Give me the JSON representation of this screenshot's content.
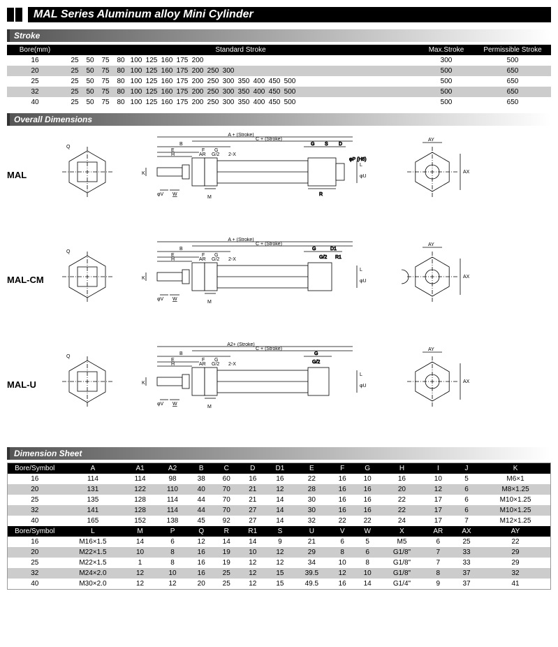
{
  "title": "MAL Series Aluminum alloy Mini Cylinder",
  "sections": {
    "stroke": "Stroke",
    "dimensions": "Overall Dimensions",
    "dimsheet": "Dimension Sheet"
  },
  "stroke_table": {
    "headers": {
      "bore": "Bore(mm)",
      "std": "Standard Stroke",
      "max": "Max.Stroke",
      "perm": "Permissible Stroke"
    },
    "col_widths": {
      "bore": 80,
      "max": 80,
      "perm": 100
    },
    "rows": [
      {
        "bore": "16",
        "strokes": [
          "25",
          "50",
          "75",
          "80",
          "100",
          "125",
          "160",
          "175",
          "200"
        ],
        "max": "300",
        "perm": "500",
        "alt": false
      },
      {
        "bore": "20",
        "strokes": [
          "25",
          "50",
          "75",
          "80",
          "100",
          "125",
          "160",
          "175",
          "200",
          "250",
          "300"
        ],
        "max": "500",
        "perm": "650",
        "alt": true
      },
      {
        "bore": "25",
        "strokes": [
          "25",
          "50",
          "75",
          "80",
          "100",
          "125",
          "160",
          "175",
          "200",
          "250",
          "300",
          "350",
          "400",
          "450",
          "500"
        ],
        "max": "500",
        "perm": "650",
        "alt": false
      },
      {
        "bore": "32",
        "strokes": [
          "25",
          "50",
          "75",
          "80",
          "100",
          "125",
          "160",
          "175",
          "200",
          "250",
          "300",
          "350",
          "400",
          "450",
          "500"
        ],
        "max": "500",
        "perm": "650",
        "alt": true
      },
      {
        "bore": "40",
        "strokes": [
          "25",
          "50",
          "75",
          "80",
          "100",
          "125",
          "160",
          "175",
          "200",
          "250",
          "300",
          "350",
          "400",
          "450",
          "500"
        ],
        "max": "500",
        "perm": "650",
        "alt": false
      }
    ]
  },
  "diagram_labels": [
    "MAL",
    "MAL-CM",
    "MAL-U"
  ],
  "diagram_annot": {
    "top1": "A + (Stroke)",
    "top2": "C + (Stroke)",
    "labels_h": [
      "B",
      "E",
      "F",
      "G",
      "H",
      "AR",
      "G/2",
      "2-X",
      "G",
      "S",
      "D",
      "G/2",
      "D1",
      "R1",
      "φP (H8)"
    ],
    "labels_v": [
      "K",
      "L",
      "φV",
      "W",
      "M",
      "R",
      "φU",
      "AX",
      "AY",
      "Q"
    ],
    "topA2": "A2+ (Stroke)",
    "topA": "A + (Stroke)"
  },
  "dim_sheet": {
    "header1": [
      "Bore/Symbol",
      "A",
      "A1",
      "A2",
      "B",
      "C",
      "D",
      "D1",
      "E",
      "F",
      "G",
      "H",
      "I",
      "J",
      "K"
    ],
    "rows1": [
      {
        "alt": false,
        "cells": [
          "16",
          "114",
          "114",
          "98",
          "38",
          "60",
          "16",
          "16",
          "22",
          "16",
          "10",
          "16",
          "10",
          "5",
          "M6×1"
        ]
      },
      {
        "alt": true,
        "cells": [
          "20",
          "131",
          "122",
          "110",
          "40",
          "70",
          "21",
          "12",
          "28",
          "16",
          "16",
          "20",
          "12",
          "6",
          "M8×1.25"
        ]
      },
      {
        "alt": false,
        "cells": [
          "25",
          "135",
          "128",
          "114",
          "44",
          "70",
          "21",
          "14",
          "30",
          "16",
          "16",
          "22",
          "17",
          "6",
          "M10×1.25"
        ]
      },
      {
        "alt": true,
        "cells": [
          "32",
          "141",
          "128",
          "114",
          "44",
          "70",
          "27",
          "14",
          "30",
          "16",
          "16",
          "22",
          "17",
          "6",
          "M10×1.25"
        ]
      },
      {
        "alt": false,
        "cells": [
          "40",
          "165",
          "152",
          "138",
          "45",
          "92",
          "27",
          "14",
          "32",
          "22",
          "22",
          "24",
          "17",
          "7",
          "M12×1.25"
        ]
      }
    ],
    "header2": [
      "Bore/Symbol",
      "L",
      "M",
      "P",
      "Q",
      "R",
      "R1",
      "S",
      "U",
      "V",
      "W",
      "X",
      "AR",
      "AX",
      "AY"
    ],
    "rows2": [
      {
        "alt": false,
        "cells": [
          "16",
          "M16×1.5",
          "14",
          "6",
          "12",
          "14",
          "14",
          "9",
          "21",
          "6",
          "5",
          "M5",
          "6",
          "25",
          "22"
        ]
      },
      {
        "alt": true,
        "cells": [
          "20",
          "M22×1.5",
          "10",
          "8",
          "16",
          "19",
          "10",
          "12",
          "29",
          "8",
          "6",
          "G1/8\"",
          "7",
          "33",
          "29"
        ]
      },
      {
        "alt": false,
        "cells": [
          "25",
          "M22×1.5",
          "1",
          "8",
          "16",
          "19",
          "12",
          "12",
          "34",
          "10",
          "8",
          "G1/8\"",
          "7",
          "33",
          "29"
        ]
      },
      {
        "alt": true,
        "cells": [
          "32",
          "M24×2.0",
          "12",
          "10",
          "16",
          "25",
          "12",
          "15",
          "39.5",
          "12",
          "10",
          "G1/8\"",
          "8",
          "37",
          "32"
        ]
      },
      {
        "alt": false,
        "cells": [
          "40",
          "M30×2.0",
          "12",
          "12",
          "20",
          "25",
          "12",
          "15",
          "49.5",
          "16",
          "14",
          "G1/4\"",
          "9",
          "37",
          "41"
        ]
      }
    ]
  }
}
